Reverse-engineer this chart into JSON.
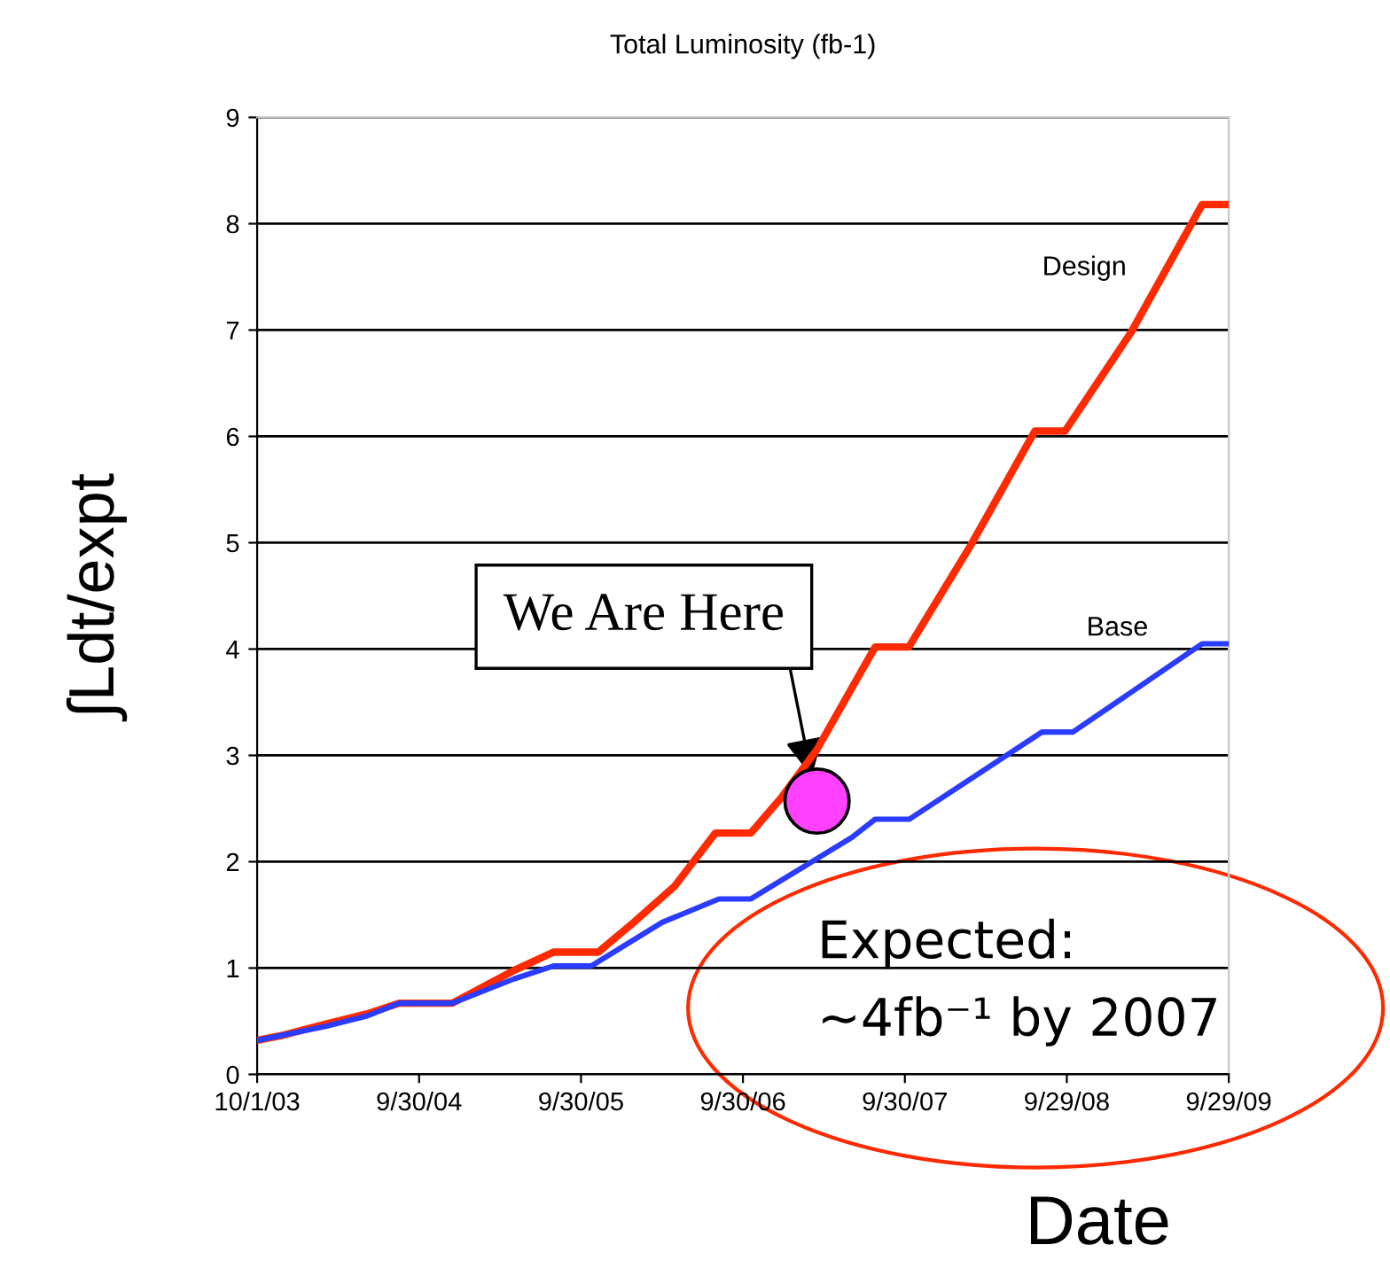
{
  "chart_data": {
    "type": "line",
    "title": "Total Luminosity (fb-1)",
    "xlabel": "Date",
    "ylabel": "∫Ldt/expt",
    "xlim": [
      "2003-10-01",
      "2009-09-29"
    ],
    "xticks": [
      {
        "value": "2003-10-01",
        "label": "10/1/03"
      },
      {
        "value": "2004-09-30",
        "label": "9/30/04"
      },
      {
        "value": "2005-09-30",
        "label": "9/30/05"
      },
      {
        "value": "2006-09-30",
        "label": "9/30/06"
      },
      {
        "value": "2007-09-30",
        "label": "9/30/07"
      },
      {
        "value": "2008-09-29",
        "label": "9/29/08"
      },
      {
        "value": "2009-09-29",
        "label": "9/29/09"
      }
    ],
    "ylim": [
      0,
      9
    ],
    "yticks": [
      0,
      1,
      2,
      3,
      4,
      5,
      6,
      7,
      8,
      9
    ],
    "grid": "y",
    "legend": false,
    "series": [
      {
        "name": "Design",
        "color": "#ff2a00",
        "x": [
          "2003-10-01",
          "2003-11-30",
          "2004-03-01",
          "2004-06-05",
          "2004-08-16",
          "2004-12-14",
          "2005-05-03",
          "2005-07-30",
          "2005-11-08",
          "2006-01-27",
          "2006-04-29",
          "2006-07-30",
          "2006-10-18",
          "2006-12-25",
          "2007-03-15",
          "2007-07-25",
          "2007-10-09",
          "2008-02-26",
          "2008-07-19",
          "2008-09-25",
          "2009-02-21",
          "2009-07-31",
          "2009-09-29"
        ],
        "values": [
          0.32,
          0.37,
          0.47,
          0.57,
          0.67,
          0.67,
          0.98,
          1.15,
          1.15,
          1.43,
          1.77,
          2.27,
          2.27,
          2.6,
          3.05,
          4.02,
          4.02,
          4.98,
          6.05,
          6.05,
          6.98,
          8.18,
          8.18
        ]
      },
      {
        "name": "Base",
        "color": "#2a3cff",
        "x": [
          "2003-10-01",
          "2004-03-01",
          "2004-06-05",
          "2004-08-16",
          "2004-12-14",
          "2005-05-03",
          "2005-07-30",
          "2005-10-23",
          "2006-04-01",
          "2006-08-07",
          "2006-10-18",
          "2007-06-03",
          "2007-07-25",
          "2007-10-10",
          "2008-08-04",
          "2008-10-13",
          "2009-07-31",
          "2009-09-29"
        ],
        "values": [
          0.32,
          0.45,
          0.55,
          0.67,
          0.67,
          0.9,
          1.02,
          1.02,
          1.43,
          1.65,
          1.65,
          2.23,
          2.4,
          2.4,
          3.22,
          3.22,
          4.05,
          4.05
        ]
      },
      {
        "type": "scatter",
        "color": "#ff40ff",
        "marker": "circle",
        "x": [
          "2007-03-16"
        ],
        "values": [
          2.57
        ]
      }
    ],
    "annotations": [
      {
        "text": "We Are Here",
        "x": "2007-03-04",
        "y": 2.8
      },
      "Expected:\n~4fb⁻¹ by 2007"
    ]
  }
}
